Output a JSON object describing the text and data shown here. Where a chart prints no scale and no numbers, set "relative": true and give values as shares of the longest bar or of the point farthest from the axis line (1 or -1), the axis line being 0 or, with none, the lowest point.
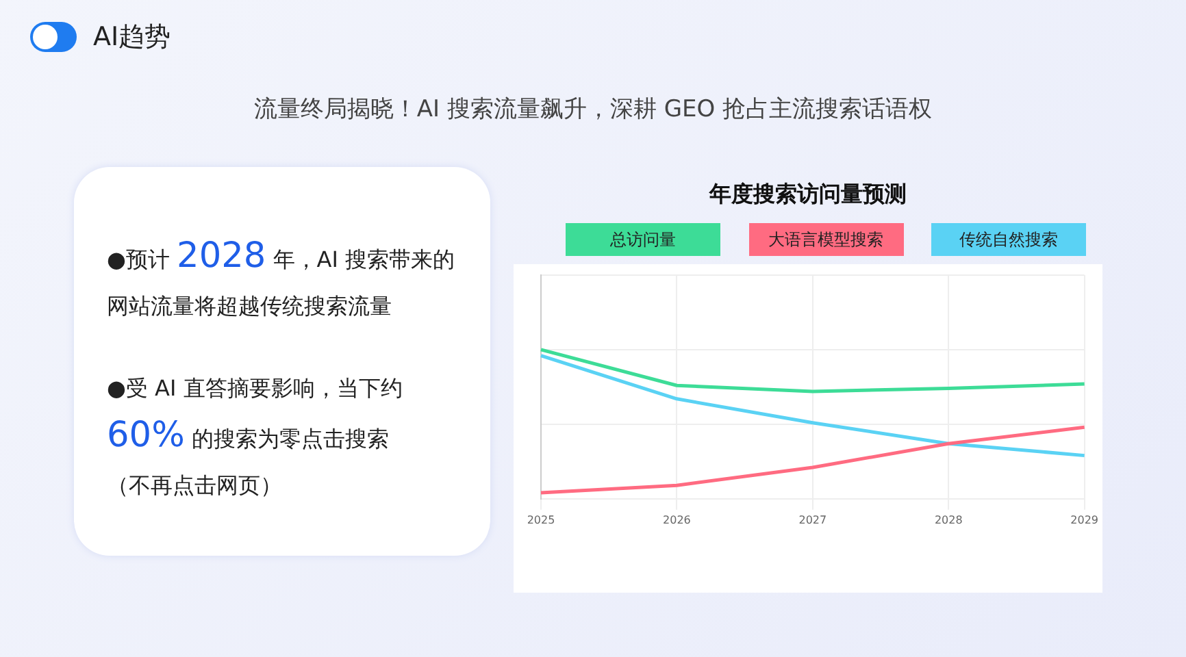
{
  "chart_data": {
    "type": "line",
    "title": "年度搜索访问量预测",
    "subtitle": "流量终局揭晓！AI 搜索流量飙升，深耕 GEO 抢占主流搜索话语权",
    "annotations": [
      "AI趋势",
      "●预计 2028 年，AI 搜索带来的网站流量将超越传统搜索流量",
      "●受 AI 直答摘要影响，当下约 60% 的搜索为零点击搜索",
      "（不再点击网页）"
    ],
    "categories": [
      "2025",
      "2026",
      "2027",
      "2028",
      "2029"
    ],
    "relative": true,
    "grid": true,
    "legend": "top",
    "tick_labels": "x",
    "marker": "none",
    "series": [
      {
        "name": "总访问量",
        "color": "#3ddc97",
        "values": [
          1.0,
          0.76,
          0.72,
          0.74,
          0.77
        ]
      },
      {
        "name": "大语言模型搜索",
        "color": "#ff6b81",
        "values": [
          0.04,
          0.09,
          0.21,
          0.37,
          0.48
        ]
      },
      {
        "name": "传统自然搜索",
        "color": "#5ad2f4",
        "values": [
          0.96,
          0.67,
          0.51,
          0.37,
          0.29
        ]
      }
    ]
  }
}
